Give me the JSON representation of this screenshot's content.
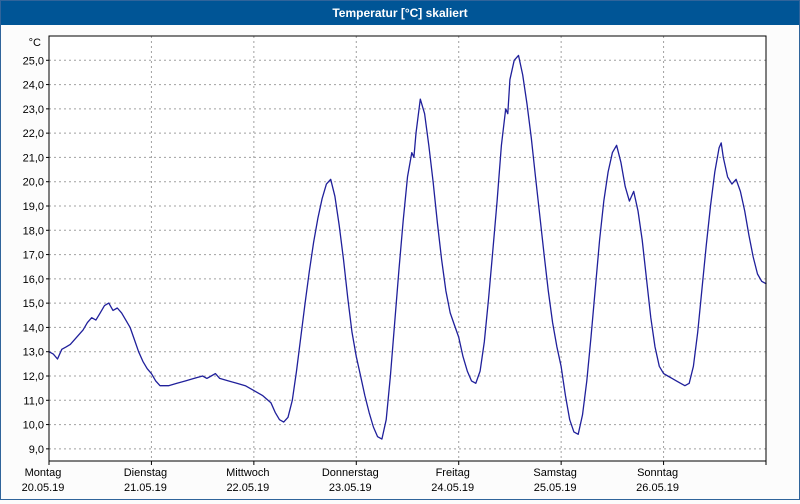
{
  "window": {
    "title": "Temperatur [°C] skaliert"
  },
  "chart_data": {
    "type": "line",
    "title": "Temperatur [°C] skaliert",
    "ylabel": "°C",
    "xlabel": "",
    "ylim": [
      8.5,
      26.0
    ],
    "yticks": [
      9,
      10,
      11,
      12,
      13,
      14,
      15,
      16,
      17,
      18,
      19,
      20,
      21,
      22,
      23,
      24,
      25
    ],
    "ytick_labels": [
      "9,0",
      "10,0",
      "11,0",
      "12,0",
      "13,0",
      "14,0",
      "15,0",
      "16,0",
      "17,0",
      "18,0",
      "19,0",
      "20,0",
      "21,0",
      "22,0",
      "23,0",
      "24,0",
      "25,0"
    ],
    "x_axis": {
      "total_hours": 168,
      "days": [
        {
          "name": "Montag",
          "date": "20.05.19"
        },
        {
          "name": "Dienstag",
          "date": "21.05.19"
        },
        {
          "name": "Mittwoch",
          "date": "22.05.19"
        },
        {
          "name": "Donnerstag",
          "date": "23.05.19"
        },
        {
          "name": "Freitag",
          "date": "24.05.19"
        },
        {
          "name": "Samstag",
          "date": "25.05.19"
        },
        {
          "name": "Sonntag",
          "date": "26.05.19"
        }
      ]
    },
    "grid": {
      "style": "dashed",
      "horizontal": true,
      "vertical": true
    },
    "legend_position": "none",
    "series": [
      {
        "name": "Temperatur",
        "color": "#20209b",
        "points_hour_temp": [
          [
            0,
            13.0
          ],
          [
            1,
            12.9
          ],
          [
            2,
            12.7
          ],
          [
            3,
            13.1
          ],
          [
            4,
            13.2
          ],
          [
            5,
            13.3
          ],
          [
            6,
            13.5
          ],
          [
            7,
            13.7
          ],
          [
            8,
            13.9
          ],
          [
            9,
            14.2
          ],
          [
            10,
            14.4
          ],
          [
            11,
            14.3
          ],
          [
            12,
            14.6
          ],
          [
            13,
            14.9
          ],
          [
            14,
            15.0
          ],
          [
            15,
            14.7
          ],
          [
            16,
            14.8
          ],
          [
            17,
            14.6
          ],
          [
            18,
            14.3
          ],
          [
            19,
            14.0
          ],
          [
            20,
            13.5
          ],
          [
            21,
            13.0
          ],
          [
            22,
            12.6
          ],
          [
            23,
            12.3
          ],
          [
            24,
            12.1
          ],
          [
            25,
            11.8
          ],
          [
            26,
            11.6
          ],
          [
            27,
            11.6
          ],
          [
            28,
            11.6
          ],
          [
            30,
            11.7
          ],
          [
            32,
            11.8
          ],
          [
            34,
            11.9
          ],
          [
            36,
            12.0
          ],
          [
            37,
            11.9
          ],
          [
            38,
            12.0
          ],
          [
            39,
            12.1
          ],
          [
            40,
            11.9
          ],
          [
            42,
            11.8
          ],
          [
            44,
            11.7
          ],
          [
            46,
            11.6
          ],
          [
            48,
            11.4
          ],
          [
            50,
            11.2
          ],
          [
            52,
            10.9
          ],
          [
            53,
            10.5
          ],
          [
            54,
            10.2
          ],
          [
            55,
            10.1
          ],
          [
            56,
            10.3
          ],
          [
            57,
            11.0
          ],
          [
            58,
            12.2
          ],
          [
            59,
            13.6
          ],
          [
            60,
            15.0
          ],
          [
            61,
            16.3
          ],
          [
            62,
            17.5
          ],
          [
            63,
            18.5
          ],
          [
            64,
            19.3
          ],
          [
            65,
            19.9
          ],
          [
            66,
            20.1
          ],
          [
            67,
            19.4
          ],
          [
            68,
            18.2
          ],
          [
            69,
            16.8
          ],
          [
            70,
            15.2
          ],
          [
            71,
            13.8
          ],
          [
            72,
            12.8
          ],
          [
            73,
            12.0
          ],
          [
            74,
            11.2
          ],
          [
            75,
            10.5
          ],
          [
            76,
            9.9
          ],
          [
            77,
            9.5
          ],
          [
            78,
            9.4
          ],
          [
            79,
            10.2
          ],
          [
            80,
            12.0
          ],
          [
            81,
            14.2
          ],
          [
            82,
            16.4
          ],
          [
            83,
            18.4
          ],
          [
            84,
            20.2
          ],
          [
            85,
            21.2
          ],
          [
            85.5,
            21.0
          ],
          [
            86,
            22.0
          ],
          [
            87,
            23.4
          ],
          [
            88,
            22.8
          ],
          [
            89,
            21.5
          ],
          [
            90,
            20.0
          ],
          [
            91,
            18.3
          ],
          [
            92,
            16.8
          ],
          [
            93,
            15.5
          ],
          [
            94,
            14.6
          ],
          [
            95,
            14.1
          ],
          [
            96,
            13.6
          ],
          [
            97,
            12.8
          ],
          [
            98,
            12.2
          ],
          [
            99,
            11.8
          ],
          [
            100,
            11.7
          ],
          [
            101,
            12.2
          ],
          [
            102,
            13.4
          ],
          [
            103,
            15.2
          ],
          [
            104,
            17.2
          ],
          [
            105,
            19.2
          ],
          [
            106,
            21.5
          ],
          [
            107,
            23.0
          ],
          [
            107.5,
            22.8
          ],
          [
            108,
            24.2
          ],
          [
            109,
            25.0
          ],
          [
            110,
            25.2
          ],
          [
            111,
            24.4
          ],
          [
            112,
            23.2
          ],
          [
            113,
            21.8
          ],
          [
            114,
            20.2
          ],
          [
            115,
            18.6
          ],
          [
            116,
            17.0
          ],
          [
            117,
            15.5
          ],
          [
            118,
            14.2
          ],
          [
            119,
            13.2
          ],
          [
            120,
            12.4
          ],
          [
            121,
            11.2
          ],
          [
            122,
            10.2
          ],
          [
            123,
            9.7
          ],
          [
            124,
            9.6
          ],
          [
            125,
            10.4
          ],
          [
            126,
            11.8
          ],
          [
            127,
            13.6
          ],
          [
            128,
            15.6
          ],
          [
            129,
            17.6
          ],
          [
            130,
            19.2
          ],
          [
            131,
            20.4
          ],
          [
            132,
            21.2
          ],
          [
            133,
            21.5
          ],
          [
            134,
            20.8
          ],
          [
            135,
            19.8
          ],
          [
            136,
            19.2
          ],
          [
            137,
            19.6
          ],
          [
            138,
            18.8
          ],
          [
            139,
            17.6
          ],
          [
            140,
            16.0
          ],
          [
            141,
            14.4
          ],
          [
            142,
            13.2
          ],
          [
            143,
            12.4
          ],
          [
            144,
            12.1
          ],
          [
            145,
            12.0
          ],
          [
            146,
            11.9
          ],
          [
            147,
            11.8
          ],
          [
            148,
            11.7
          ],
          [
            149,
            11.6
          ],
          [
            150,
            11.7
          ],
          [
            151,
            12.4
          ],
          [
            152,
            13.8
          ],
          [
            153,
            15.6
          ],
          [
            154,
            17.4
          ],
          [
            155,
            19.0
          ],
          [
            156,
            20.4
          ],
          [
            157,
            21.4
          ],
          [
            157.5,
            21.6
          ],
          [
            158,
            21.0
          ],
          [
            159,
            20.2
          ],
          [
            160,
            19.9
          ],
          [
            161,
            20.1
          ],
          [
            162,
            19.6
          ],
          [
            163,
            18.8
          ],
          [
            164,
            17.8
          ],
          [
            165,
            16.9
          ],
          [
            166,
            16.2
          ],
          [
            167,
            15.9
          ],
          [
            168,
            15.8
          ]
        ]
      }
    ]
  },
  "colors": {
    "titlebar_bg": "#005596",
    "titlebar_text": "#ffffff",
    "window_border": "#30649b",
    "page_bg": "#fcfcfc",
    "plot_bg": "#ffffff",
    "plot_border": "#000000",
    "grid": "#a0a0a0",
    "text": "#000000",
    "line": "#20209b"
  }
}
